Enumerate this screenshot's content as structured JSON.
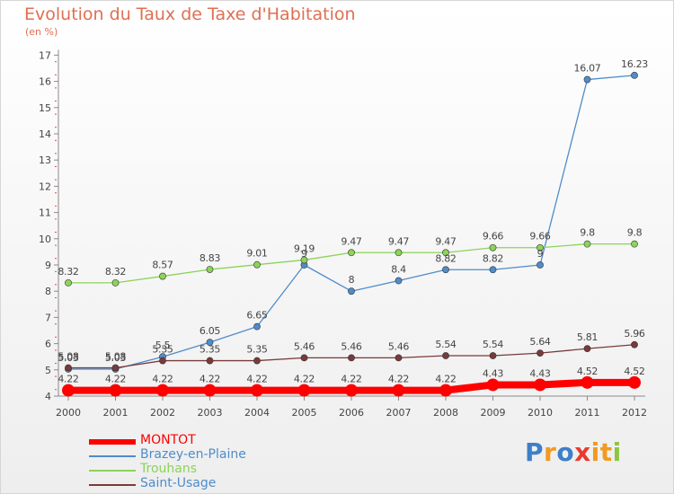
{
  "chart_data": {
    "type": "line",
    "title": "Evolution du Taux de Taxe d'Habitation",
    "subtitle": "(en %)",
    "xlabel": "",
    "ylabel": "",
    "categories": [
      "2000",
      "2001",
      "2002",
      "2003",
      "2004",
      "2005",
      "2006",
      "2007",
      "2008",
      "2009",
      "2010",
      "2011",
      "2012"
    ],
    "ylim": [
      4,
      17
    ],
    "yticks": [
      4,
      5,
      6,
      7,
      8,
      9,
      10,
      11,
      12,
      13,
      14,
      15,
      16,
      17
    ],
    "grid": false,
    "legend_position": "bottom-left",
    "series": [
      {
        "name": "MONTOT",
        "color": "#ff0000",
        "values": [
          4.22,
          4.22,
          4.22,
          4.22,
          4.22,
          4.22,
          4.22,
          4.22,
          4.22,
          4.43,
          4.43,
          4.52,
          4.52
        ],
        "labels": [
          "4.22",
          "4.22",
          "4.22",
          "4.22",
          "4.22",
          "4.22",
          "4.22",
          "4.22",
          "4.22",
          "4.43",
          "4.43",
          "4.52",
          "4.52"
        ]
      },
      {
        "name": "Brazey-en-Plaine",
        "color": "#4f8cc9",
        "values": [
          5.03,
          5.03,
          5.5,
          6.05,
          6.65,
          9,
          8,
          8.4,
          8.82,
          8.82,
          9,
          16.07,
          16.23
        ],
        "labels": [
          "5.03",
          "5.03",
          "5.5",
          "6.05",
          "6.65",
          "9",
          "8",
          "8.4",
          "8.82",
          "8.82",
          "9",
          "16.07",
          "16.23"
        ]
      },
      {
        "name": "Trouhans",
        "color": "#8cd35a",
        "values": [
          8.32,
          8.32,
          8.57,
          8.83,
          9.01,
          9.19,
          9.47,
          9.47,
          9.47,
          9.66,
          9.66,
          9.8,
          9.8
        ],
        "labels": [
          "8.32",
          "8.32",
          "8.57",
          "8.83",
          "9.01",
          "9.19",
          "9.47",
          "9.47",
          "9.47",
          "9.66",
          "9.66",
          "9.8",
          "9.8"
        ]
      },
      {
        "name": "Saint-Usage",
        "color": "#7a3a3a",
        "values": [
          5.08,
          5.08,
          5.35,
          5.35,
          5.35,
          5.46,
          5.46,
          5.46,
          5.54,
          5.54,
          5.64,
          5.81,
          5.96
        ],
        "labels": [
          "5.08",
          "5.08",
          "5.35",
          "5.35",
          "5.35",
          "5.46",
          "5.46",
          "5.46",
          "5.54",
          "5.54",
          "5.64",
          "5.81",
          "5.96"
        ]
      }
    ]
  },
  "logo": {
    "text": "Proxiti"
  }
}
